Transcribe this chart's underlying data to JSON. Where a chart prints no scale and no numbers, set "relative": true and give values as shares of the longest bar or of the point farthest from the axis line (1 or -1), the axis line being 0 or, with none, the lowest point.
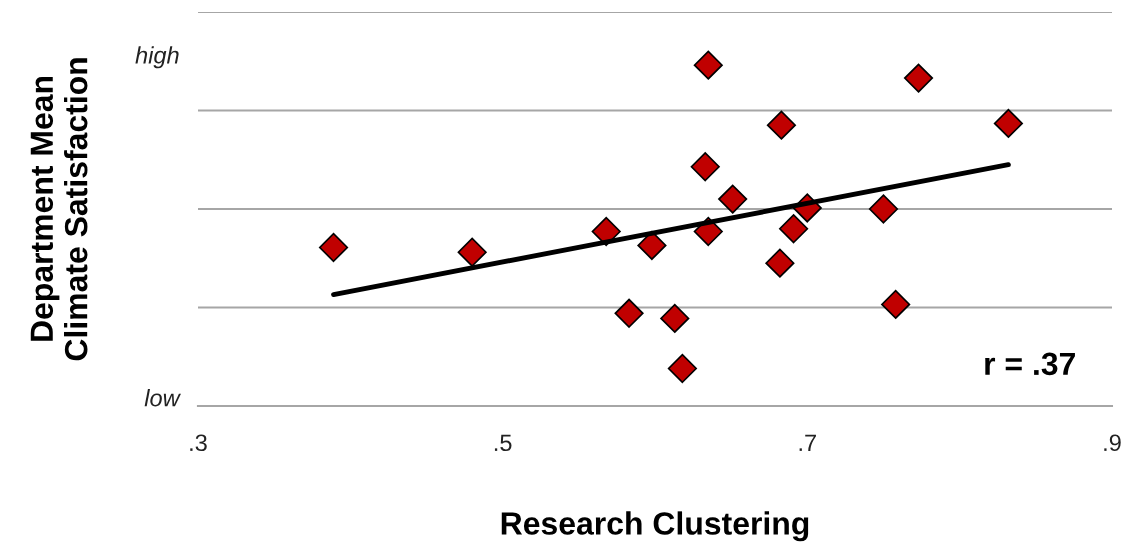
{
  "chart_data": {
    "type": "scatter",
    "xlabel": "Research Clustering",
    "ylabel": "Department Mean\nClimate Satisfaction",
    "annotations": [
      "high",
      "low",
      "r = .37"
    ],
    "xlim": [
      0.3,
      0.9
    ],
    "xticks": [
      {
        "value": 0.3,
        "label": ".3"
      },
      {
        "value": 0.5,
        "label": ".5"
      },
      {
        "value": 0.7,
        "label": ".7"
      },
      {
        "value": 0.9,
        "label": ".9"
      }
    ],
    "relative": true,
    "grid": "y",
    "marker": "diamond",
    "series": [
      {
        "color": "#c00000",
        "x": [
          0.389,
          0.48,
          0.568,
          0.583,
          0.598,
          0.613,
          0.618,
          0.633,
          0.635,
          0.635,
          0.651,
          0.683,
          0.682,
          0.691,
          0.7,
          0.75,
          0.758,
          0.773,
          0.832
        ],
        "values": [
          0.465,
          0.451,
          0.512,
          0.272,
          0.471,
          0.257,
          0.11,
          0.702,
          0.512,
          1,
          0.607,
          0.824,
          0.419,
          0.52,
          0.581,
          0.578,
          0.298,
          0.962,
          0.829
        ]
      },
      {
        "type": "line",
        "color": "#000000",
        "marker": "none",
        "x": [
          0.389,
          0.832
        ],
        "values": [
          0.327,
          0.708
        ]
      }
    ]
  }
}
